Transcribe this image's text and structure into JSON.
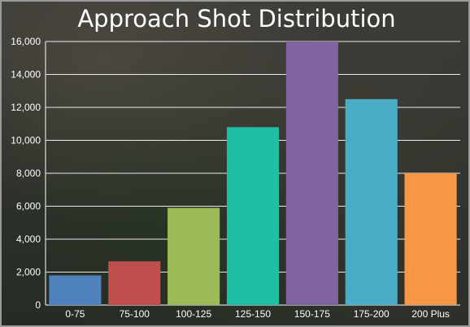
{
  "title": "Approach Shot Distribution",
  "chart_data": {
    "type": "bar",
    "title": "Approach Shot Distribution",
    "xlabel": "",
    "ylabel": "",
    "categories": [
      "0-75",
      "75-100",
      "100-125",
      "125-150",
      "150-175",
      "175-200",
      "200 Plus"
    ],
    "values": [
      1800,
      2650,
      5900,
      10800,
      16000,
      12500,
      8000
    ],
    "ylim": [
      0,
      16000
    ],
    "yticks": [
      "0",
      "2,000",
      "4,000",
      "6,000",
      "8,000",
      "10,000",
      "12,000",
      "14,000",
      "16,000"
    ],
    "grid": true,
    "legend": "none",
    "colors": [
      "#4f81bd",
      "#c0504d",
      "#9bbb59",
      "#1fbfa6",
      "#8064a2",
      "#4bacc6",
      "#f79646"
    ]
  }
}
